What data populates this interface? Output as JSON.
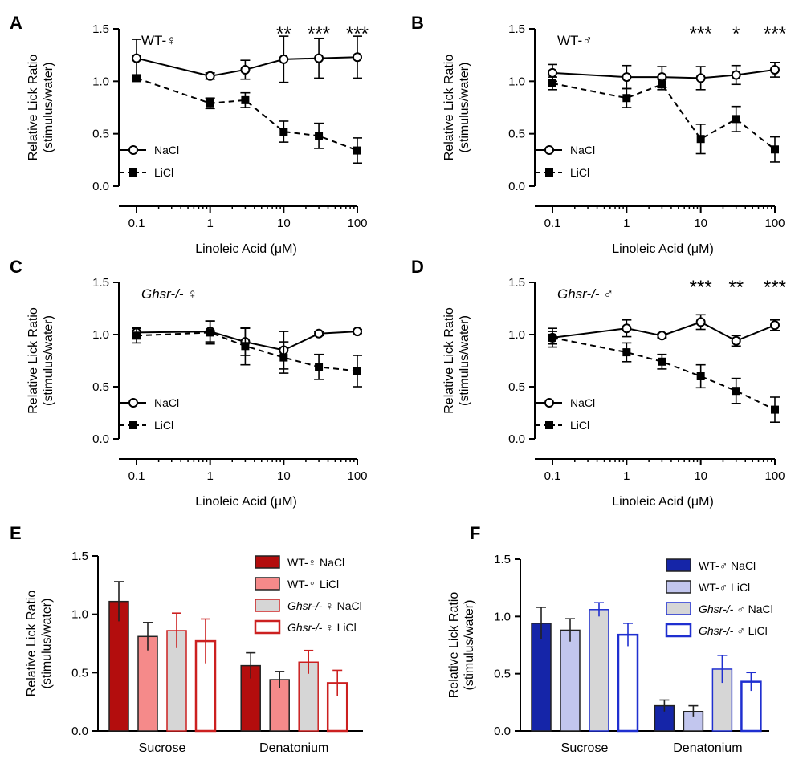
{
  "chart_data": [
    {
      "panel": "A",
      "type": "line",
      "title": "WT-♀",
      "xscale": "log",
      "x": [
        0.1,
        1,
        3,
        10,
        30,
        100
      ],
      "xticks": [
        "0.1",
        "1",
        "10",
        "100"
      ],
      "xlabel": "Linoleic Acid (μM)",
      "ylabel": "Relative Lick Ratio",
      "ylabel2": "(stimulus/water)",
      "ylim": [
        0,
        1.5
      ],
      "yticks": [
        "0.0",
        "0.5",
        "1.0",
        "1.5"
      ],
      "series": [
        {
          "name": "NaCl",
          "values": [
            1.22,
            1.05,
            1.11,
            1.21,
            1.22,
            1.23
          ],
          "err": [
            0.18,
            0.03,
            0.09,
            0.22,
            0.19,
            0.2
          ]
        },
        {
          "name": "LiCl",
          "values": [
            1.03,
            0.79,
            0.82,
            0.52,
            0.48,
            0.34
          ],
          "err": [
            0.02,
            0.05,
            0.07,
            0.1,
            0.12,
            0.12
          ]
        }
      ],
      "significance": [
        {
          "x": 10,
          "label": "**"
        },
        {
          "x": 30,
          "label": "***"
        },
        {
          "x": 100,
          "label": "***"
        }
      ]
    },
    {
      "panel": "B",
      "type": "line",
      "title": "WT-♂",
      "xscale": "log",
      "x": [
        0.1,
        1,
        3,
        10,
        30,
        100
      ],
      "xticks": [
        "0.1",
        "1",
        "10",
        "100"
      ],
      "xlabel": "Linoleic Acid (μM)",
      "ylabel": "Relative Lick Ratio",
      "ylabel2": "(stimulus/water)",
      "ylim": [
        0,
        1.5
      ],
      "yticks": [
        "0.0",
        "0.5",
        "1.0",
        "1.5"
      ],
      "series": [
        {
          "name": "NaCl",
          "values": [
            1.08,
            1.04,
            1.04,
            1.03,
            1.06,
            1.11
          ],
          "err": [
            0.08,
            0.11,
            0.1,
            0.11,
            0.09,
            0.07
          ]
        },
        {
          "name": "LiCl",
          "values": [
            0.98,
            0.84,
            0.97,
            0.45,
            0.64,
            0.35
          ],
          "err": [
            0.06,
            0.09,
            0.05,
            0.14,
            0.12,
            0.12
          ]
        }
      ],
      "significance": [
        {
          "x": 10,
          "label": "***"
        },
        {
          "x": 30,
          "label": "*"
        },
        {
          "x": 100,
          "label": "***"
        }
      ]
    },
    {
      "panel": "C",
      "type": "line",
      "title": "Ghsr-/- ♀",
      "xscale": "log",
      "x": [
        0.1,
        1,
        3,
        10,
        30,
        100
      ],
      "xticks": [
        "0.1",
        "1",
        "10",
        "100"
      ],
      "xlabel": "Linoleic Acid (μM)",
      "ylabel": "Relative Lick Ratio",
      "ylabel2": "(stimulus/water)",
      "ylim": [
        0,
        1.5
      ],
      "yticks": [
        "0.0",
        "0.5",
        "1.0",
        "1.5"
      ],
      "series": [
        {
          "name": "NaCl",
          "values": [
            1.02,
            1.03,
            0.93,
            0.85,
            1.01,
            1.03
          ],
          "err": [
            0.05,
            0.1,
            0.13,
            0.18,
            0.02,
            0.02
          ]
        },
        {
          "name": "LiCl",
          "values": [
            0.99,
            1.02,
            0.89,
            0.78,
            0.69,
            0.65
          ],
          "err": [
            0.07,
            0.11,
            0.18,
            0.15,
            0.12,
            0.15
          ]
        }
      ],
      "significance": []
    },
    {
      "panel": "D",
      "type": "line",
      "title": "Ghsr-/- ♂",
      "xscale": "log",
      "x": [
        0.1,
        1,
        3,
        10,
        30,
        100
      ],
      "xticks": [
        "0.1",
        "1",
        "10",
        "100"
      ],
      "xlabel": "Linoleic Acid (μM)",
      "ylabel": "Relative Lick Ratio",
      "ylabel2": "(stimulus/water)",
      "ylim": [
        0,
        1.5
      ],
      "yticks": [
        "0.0",
        "0.5",
        "1.0",
        "1.5"
      ],
      "series": [
        {
          "name": "NaCl",
          "values": [
            0.97,
            1.06,
            0.99,
            1.12,
            0.94,
            1.09
          ],
          "err": [
            0.09,
            0.08,
            0.02,
            0.07,
            0.05,
            0.05
          ]
        },
        {
          "name": "LiCl",
          "values": [
            0.97,
            0.83,
            0.74,
            0.6,
            0.46,
            0.28
          ],
          "err": [
            0.06,
            0.09,
            0.07,
            0.11,
            0.12,
            0.12
          ]
        }
      ],
      "significance": [
        {
          "x": 10,
          "label": "***"
        },
        {
          "x": 30,
          "label": "**"
        },
        {
          "x": 100,
          "label": "***"
        }
      ]
    },
    {
      "panel": "E",
      "type": "bar",
      "categories": [
        "Sucrose",
        "Denatonium"
      ],
      "ylabel": "Relative Lick Ratio",
      "ylabel2": "(stimulus/water)",
      "ylim": [
        0,
        1.5
      ],
      "yticks": [
        "0.0",
        "0.5",
        "1.0",
        "1.5"
      ],
      "series": [
        {
          "name": "WT-♀ NaCl",
          "values": [
            1.11,
            0.56
          ],
          "err": [
            0.17,
            0.11
          ],
          "fill": "#b30d0d",
          "stroke": "#222222"
        },
        {
          "name": "WT-♀ LiCl",
          "values": [
            0.81,
            0.44
          ],
          "err": [
            0.12,
            0.07
          ],
          "fill": "#f58a8a",
          "stroke": "#222222"
        },
        {
          "name": "Ghsr-/- ♀ NaCl",
          "values": [
            0.86,
            0.59
          ],
          "err": [
            0.15,
            0.1
          ],
          "fill": "#d6d6d6",
          "stroke": "#cc2020"
        },
        {
          "name": "Ghsr-/- ♀ LiCl",
          "values": [
            0.77,
            0.41
          ],
          "err": [
            0.19,
            0.11
          ],
          "fill": "#ffffff",
          "stroke": "#cc2020"
        }
      ]
    },
    {
      "panel": "F",
      "type": "bar",
      "categories": [
        "Sucrose",
        "Denatonium"
      ],
      "ylabel": "Relative Lick Ratio",
      "ylabel2": "(stimulus/water)",
      "ylim": [
        0,
        1.5
      ],
      "yticks": [
        "0.0",
        "0.5",
        "1.0",
        "1.5"
      ],
      "series": [
        {
          "name": "WT-♂ NaCl",
          "values": [
            0.94,
            0.22
          ],
          "err": [
            0.14,
            0.05
          ],
          "fill": "#1525a8",
          "stroke": "#222222"
        },
        {
          "name": "WT-♂ LiCl",
          "values": [
            0.88,
            0.17
          ],
          "err": [
            0.1,
            0.05
          ],
          "fill": "#c2c6ee",
          "stroke": "#222222"
        },
        {
          "name": "Ghsr-/- ♂ NaCl",
          "values": [
            1.06,
            0.54
          ],
          "err": [
            0.06,
            0.12
          ],
          "fill": "#d6d6d6",
          "stroke": "#1f2fd0"
        },
        {
          "name": "Ghsr-/- ♂ LiCl",
          "values": [
            0.84,
            0.43
          ],
          "err": [
            0.1,
            0.08
          ],
          "fill": "#ffffff",
          "stroke": "#1f2fd0"
        }
      ]
    }
  ]
}
